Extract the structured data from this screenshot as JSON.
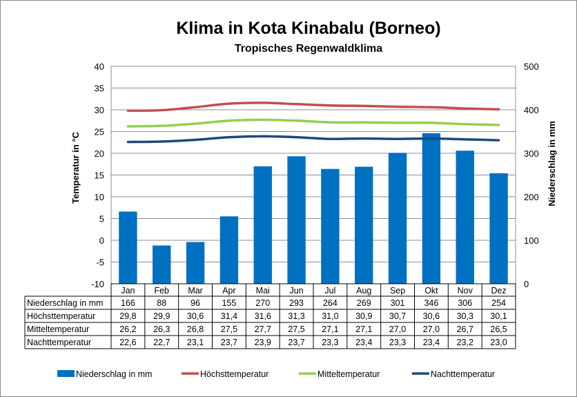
{
  "chart_data": {
    "type": "bar+line",
    "title": "Klima in Kota Kinabalu (Borneo)",
    "subtitle": "Tropisches Regenwaldklima",
    "ylabel": "Temperatur in °C",
    "y2label": "Niederschlag in mm",
    "ylim": [
      -10,
      40
    ],
    "y2lim": [
      0,
      500
    ],
    "yticks": [
      "40",
      "35",
      "30",
      "25",
      "20",
      "15",
      "10",
      "5",
      "0",
      "-5",
      "-10"
    ],
    "y2ticks": [
      "500",
      "400",
      "300",
      "200",
      "100",
      "0"
    ],
    "grid": true,
    "legend_position": "bottom",
    "categories": [
      "Jan",
      "Feb",
      "Mar",
      "Apr",
      "Mai",
      "Jun",
      "Jul",
      "Aug",
      "Sep",
      "Okt",
      "Nov",
      "Dez"
    ],
    "series": [
      {
        "name": "Niederschlag in mm",
        "type": "bar",
        "axis": "right",
        "color": "#0070C0",
        "values": [
          166,
          88,
          96,
          155,
          270,
          293,
          264,
          269,
          301,
          346,
          306,
          254
        ],
        "labels": [
          "166",
          "88",
          "96",
          "155",
          "270",
          "293",
          "264",
          "269",
          "301",
          "346",
          "306",
          "254"
        ]
      },
      {
        "name": "Höchsttemperatur",
        "type": "line",
        "axis": "left",
        "color": "#C0504D",
        "values": [
          29.8,
          29.9,
          30.6,
          31.4,
          31.6,
          31.3,
          31.0,
          30.9,
          30.7,
          30.6,
          30.3,
          30.1
        ],
        "labels": [
          "29,8",
          "29,9",
          "30,6",
          "31,4",
          "31,6",
          "31,3",
          "31,0",
          "30,9",
          "30,7",
          "30,6",
          "30,3",
          "30,1"
        ]
      },
      {
        "name": "Mitteltemperatur",
        "type": "line",
        "axis": "left",
        "color": "#92D050",
        "values": [
          26.2,
          26.3,
          26.8,
          27.5,
          27.7,
          27.5,
          27.1,
          27.1,
          27.0,
          27.0,
          26.7,
          26.5
        ],
        "labels": [
          "26,2",
          "26,3",
          "26,8",
          "27,5",
          "27,7",
          "27,5",
          "27,1",
          "27,1",
          "27,0",
          "27,0",
          "26,7",
          "26,5"
        ]
      },
      {
        "name": "Nachttemperatur",
        "type": "line",
        "axis": "left",
        "color": "#1F497D",
        "values": [
          22.6,
          22.7,
          23.1,
          23.7,
          23.9,
          23.7,
          23.3,
          23.4,
          23.3,
          23.4,
          23.2,
          23.0
        ],
        "labels": [
          "22,6",
          "22,7",
          "23,1",
          "23,7",
          "23,9",
          "23,7",
          "23,3",
          "23,4",
          "23,3",
          "23,4",
          "23,2",
          "23,0"
        ]
      }
    ]
  }
}
